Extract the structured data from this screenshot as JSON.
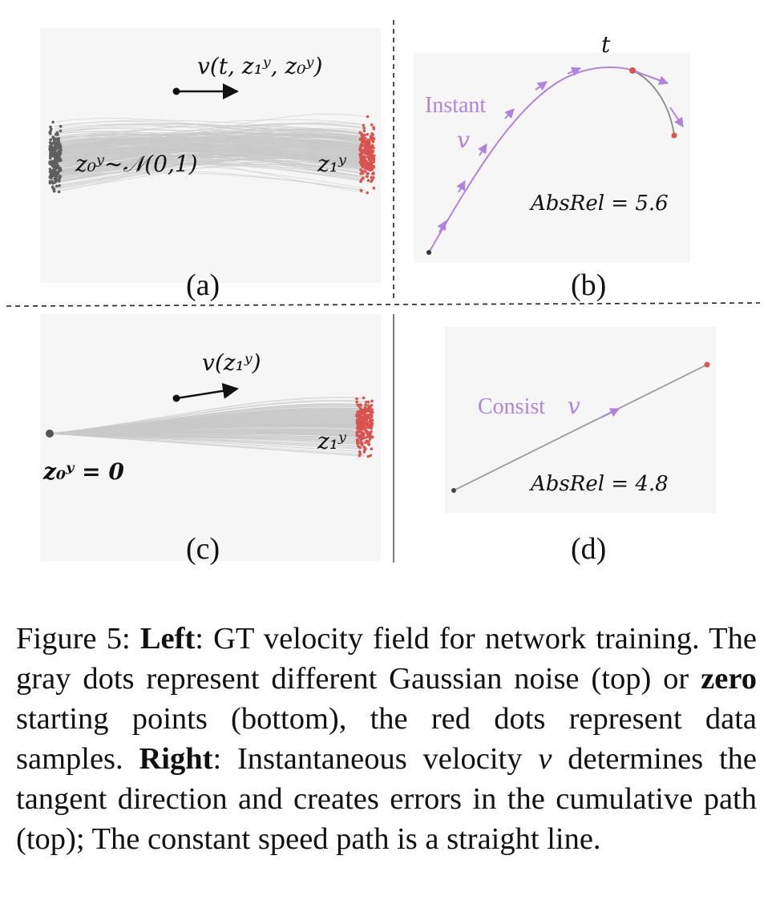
{
  "panels": {
    "a": {
      "label": "(a)",
      "velocity": "v(t, z₁ʸ, z₀ʸ)",
      "source": "z₀ʸ~𝒩(0,1)",
      "target": "z₁ʸ"
    },
    "b": {
      "label": "(b)",
      "t_label": "t",
      "instant_word": "Instant",
      "instant_v": "v",
      "metric": "AbsRel = 5.6"
    },
    "c": {
      "label": "(c)",
      "velocity": "v(z₁ʸ)",
      "source": "z₀ʸ = 0",
      "target": "z₁ʸ"
    },
    "d": {
      "label": "(d)",
      "consist_word": "Consist",
      "consist_v": "v",
      "metric": "AbsRel = 4.8"
    }
  },
  "colors": {
    "gray_dots": "#5f5f5f",
    "red_dots": "#d9534f",
    "purple": "#b084dc",
    "flow_lines": "#c9c9c9",
    "panel_bg": "#f6f6f6"
  },
  "caption": {
    "prefix": "Figure 5: ",
    "left_bold": "Left",
    "part1": ": GT velocity field for network training. The gray dots represent different Gaussian noise (top) or ",
    "zero_bold": "zero",
    "part2": " starting points (bottom), the red dots represent data samples. ",
    "right_bold": "Right",
    "part3": ": Instantaneous velocity ",
    "v_italic": "v",
    "part4": " determines the tangent direction and creates errors in the cumulative path (top); The constant speed path is a straight line."
  }
}
